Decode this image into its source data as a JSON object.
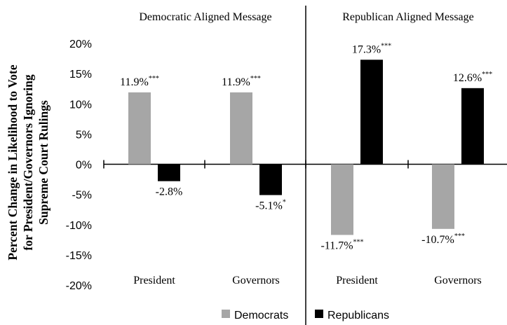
{
  "chart_data": {
    "type": "bar",
    "ylabel_lines": [
      "Percent Change in Likelihood to Vote",
      "for President/Governors Ignoring",
      "Supreme Court Rulings"
    ],
    "ylim": [
      -20,
      20
    ],
    "yticks": [
      20,
      15,
      10,
      5,
      0,
      -5,
      -10,
      -15,
      -20
    ],
    "ytick_labels": [
      "20%",
      "15%",
      "10%",
      "5%",
      "0%",
      "-5%",
      "-10%",
      "-15%",
      "-20%"
    ],
    "panels": [
      {
        "title": "Democratic Aligned Message",
        "groups": [
          {
            "category": "President",
            "bars": [
              {
                "series": "Democrats",
                "value": 11.9,
                "label": "11.9%",
                "sig": "***"
              },
              {
                "series": "Republicans",
                "value": -2.8,
                "label": "-2.8%",
                "sig": ""
              }
            ]
          },
          {
            "category": "Governors",
            "bars": [
              {
                "series": "Democrats",
                "value": 11.9,
                "label": "11.9%",
                "sig": "***"
              },
              {
                "series": "Republicans",
                "value": -5.1,
                "label": "-5.1%",
                "sig": "*"
              }
            ]
          }
        ]
      },
      {
        "title": "Republican Aligned Message",
        "groups": [
          {
            "category": "President",
            "bars": [
              {
                "series": "Democrats",
                "value": -11.7,
                "label": "-11.7%",
                "sig": "***"
              },
              {
                "series": "Republicans",
                "value": 17.3,
                "label": "17.3%",
                "sig": "***"
              }
            ]
          },
          {
            "category": "Governors",
            "bars": [
              {
                "series": "Democrats",
                "value": -10.7,
                "label": "-10.7%",
                "sig": "***"
              },
              {
                "series": "Republicans",
                "value": 12.6,
                "label": "12.6%",
                "sig": "***"
              }
            ]
          }
        ]
      }
    ],
    "series": [
      {
        "name": "Democrats",
        "color": "#a6a6a6"
      },
      {
        "name": "Republicans",
        "color": "#000000"
      }
    ],
    "legend_position": "bottom"
  }
}
